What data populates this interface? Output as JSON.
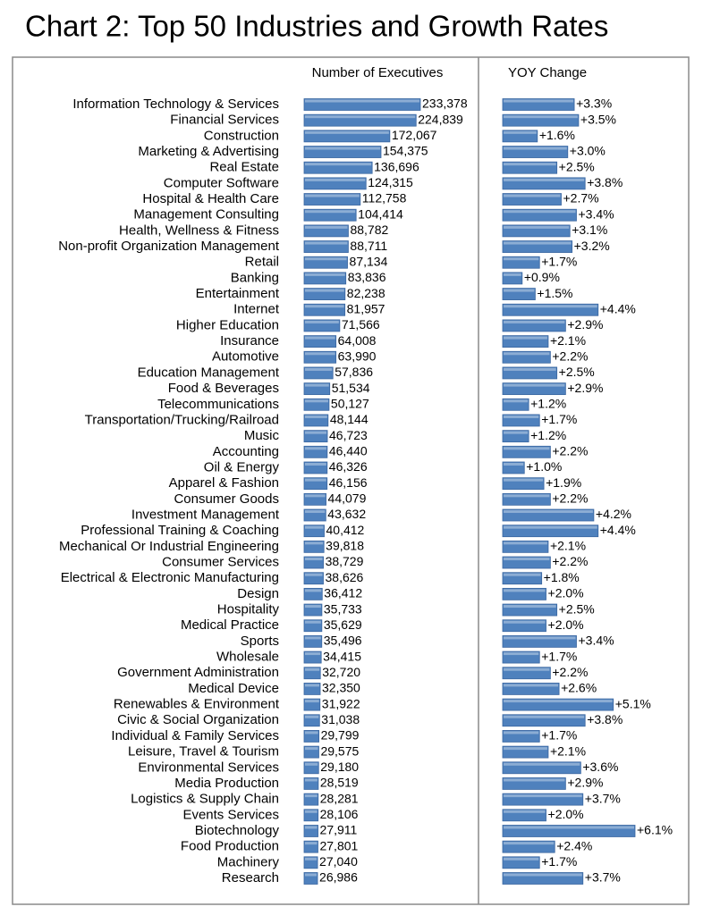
{
  "title": "Chart 2: Top 50 Industries and Growth Rates",
  "chart_data": [
    {
      "type": "bar",
      "title": "Number of Executives",
      "color": "#4f81bd",
      "categories": [
        "Information Technology & Services",
        "Financial Services",
        "Construction",
        "Marketing & Advertising",
        "Real Estate",
        "Computer Software",
        "Hospital & Health Care",
        "Management Consulting",
        "Health, Wellness & Fitness",
        "Non-profit Organization Management",
        "Retail",
        "Banking",
        "Entertainment",
        "Internet",
        "Higher Education",
        "Insurance",
        "Automotive",
        "Education Management",
        "Food & Beverages",
        "Telecommunications",
        "Transportation/Trucking/Railroad",
        "Music",
        "Accounting",
        "Oil & Energy",
        "Apparel & Fashion",
        "Consumer Goods",
        "Investment Management",
        "Professional Training & Coaching",
        "Mechanical Or Industrial Engineering",
        "Consumer Services",
        "Electrical & Electronic Manufacturing",
        "Design",
        "Hospitality",
        "Medical Practice",
        "Sports",
        "Wholesale",
        "Government Administration",
        "Medical Device",
        "Renewables & Environment",
        "Civic & Social Organization",
        "Individual & Family Services",
        "Leisure, Travel & Tourism",
        "Environmental Services",
        "Media Production",
        "Logistics & Supply Chain",
        "Events Services",
        "Biotechnology",
        "Food Production",
        "Machinery",
        "Research"
      ],
      "values": [
        233378,
        224839,
        172067,
        154375,
        136696,
        124315,
        112758,
        104414,
        88782,
        88711,
        87134,
        83836,
        82238,
        81957,
        71566,
        64008,
        63990,
        57836,
        51534,
        50127,
        48144,
        46723,
        46440,
        46326,
        46156,
        44079,
        43632,
        40412,
        39818,
        38729,
        38626,
        36412,
        35733,
        35629,
        35496,
        34415,
        32720,
        32350,
        31922,
        31038,
        29799,
        29575,
        29180,
        28519,
        28281,
        28106,
        27911,
        27801,
        27040,
        26986
      ],
      "value_labels": [
        "233,378",
        "224,839",
        "172,067",
        "154,375",
        "136,696",
        "124,315",
        "112,758",
        "104,414",
        "88,782",
        "88,711",
        "87,134",
        "83,836",
        "82,238",
        "81,957",
        "71,566",
        "64,008",
        "63,990",
        "57,836",
        "51,534",
        "50,127",
        "48,144",
        "46,723",
        "46,440",
        "46,326",
        "46,156",
        "44,079",
        "43,632",
        "40,412",
        "39,818",
        "38,729",
        "38,626",
        "36,412",
        "35,733",
        "35,629",
        "35,496",
        "34,415",
        "32,720",
        "32,350",
        "31,922",
        "31,038",
        "29,799",
        "29,575",
        "29,180",
        "28,519",
        "28,281",
        "28,106",
        "27,911",
        "27,801",
        "27,040",
        "26,986"
      ]
    },
    {
      "type": "bar",
      "title": "YOY Change",
      "color": "#4f81bd",
      "values": [
        3.3,
        3.5,
        1.6,
        3.0,
        2.5,
        3.8,
        2.7,
        3.4,
        3.1,
        3.2,
        1.7,
        0.9,
        1.5,
        4.4,
        2.9,
        2.1,
        2.2,
        2.5,
        2.9,
        1.2,
        1.7,
        1.2,
        2.2,
        1.0,
        1.9,
        2.2,
        4.2,
        4.4,
        2.1,
        2.2,
        1.8,
        2.0,
        2.5,
        2.0,
        3.4,
        1.7,
        2.2,
        2.6,
        5.1,
        3.8,
        1.7,
        2.1,
        3.6,
        2.9,
        3.7,
        2.0,
        6.1,
        2.4,
        1.7,
        3.7
      ],
      "value_labels": [
        "+3.3%",
        "+3.5%",
        "+1.6%",
        "+3.0%",
        "+2.5%",
        "+3.8%",
        "+2.7%",
        "+3.4%",
        "+3.1%",
        "+3.2%",
        "+1.7%",
        "+0.9%",
        "+1.5%",
        "+4.4%",
        "+2.9%",
        "+2.1%",
        "+2.2%",
        "+2.5%",
        "+2.9%",
        "+1.2%",
        "+1.7%",
        "+1.2%",
        "+2.2%",
        "+1.0%",
        "+1.9%",
        "+2.2%",
        "+4.2%",
        "+4.4%",
        "+2.1%",
        "+2.2%",
        "+1.8%",
        "+2.0%",
        "+2.5%",
        "+2.0%",
        "+3.4%",
        "+1.7%",
        "+2.2%",
        "+2.6%",
        "+5.1%",
        "+3.8%",
        "+1.7%",
        "+2.1%",
        "+3.6%",
        "+2.9%",
        "+3.7%",
        "+2.0%",
        "+6.1%",
        "+2.4%",
        "+1.7%",
        "+3.7%"
      ]
    }
  ]
}
